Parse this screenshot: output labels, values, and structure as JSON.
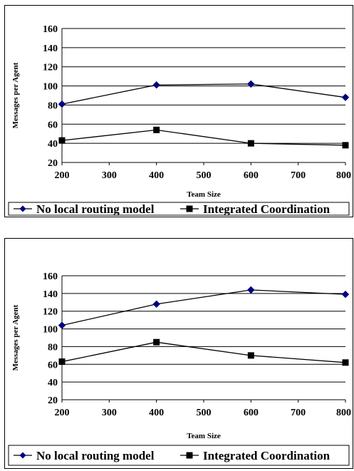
{
  "chart_data": [
    {
      "type": "line",
      "title": "",
      "xlabel": "Team Size",
      "ylabel": "Messages per Agent",
      "x": [
        200,
        400,
        600,
        800
      ],
      "xticks": [
        200,
        300,
        400,
        500,
        600,
        700,
        800
      ],
      "xlim": [
        200,
        800
      ],
      "ylim": [
        20,
        160
      ],
      "yticks": [
        20,
        40,
        60,
        80,
        100,
        120,
        140,
        160
      ],
      "grid": "horizontal",
      "legend": "bottom",
      "series": [
        {
          "name": "No local routing model",
          "marker": "diamond",
          "color": "#000080",
          "values": [
            81,
            101,
            102,
            88
          ]
        },
        {
          "name": "Integrated Coordination",
          "marker": "square",
          "color": "#000000",
          "values": [
            43,
            54,
            40,
            38
          ]
        }
      ]
    },
    {
      "type": "line",
      "title": "",
      "xlabel": "Team Size",
      "ylabel": "Messages per Agent",
      "x": [
        200,
        400,
        600,
        800
      ],
      "xticks": [
        200,
        300,
        400,
        500,
        600,
        700,
        800
      ],
      "xlim": [
        200,
        800
      ],
      "ylim": [
        20,
        160
      ],
      "yticks": [
        20,
        40,
        60,
        80,
        100,
        120,
        140,
        160
      ],
      "grid": "horizontal",
      "legend": "bottom",
      "series": [
        {
          "name": "No local routing model",
          "marker": "diamond",
          "color": "#000080",
          "values": [
            104,
            128,
            144,
            139
          ]
        },
        {
          "name": "Integrated Coordination",
          "marker": "square",
          "color": "#000000",
          "values": [
            63,
            85,
            70,
            62
          ]
        }
      ]
    }
  ]
}
